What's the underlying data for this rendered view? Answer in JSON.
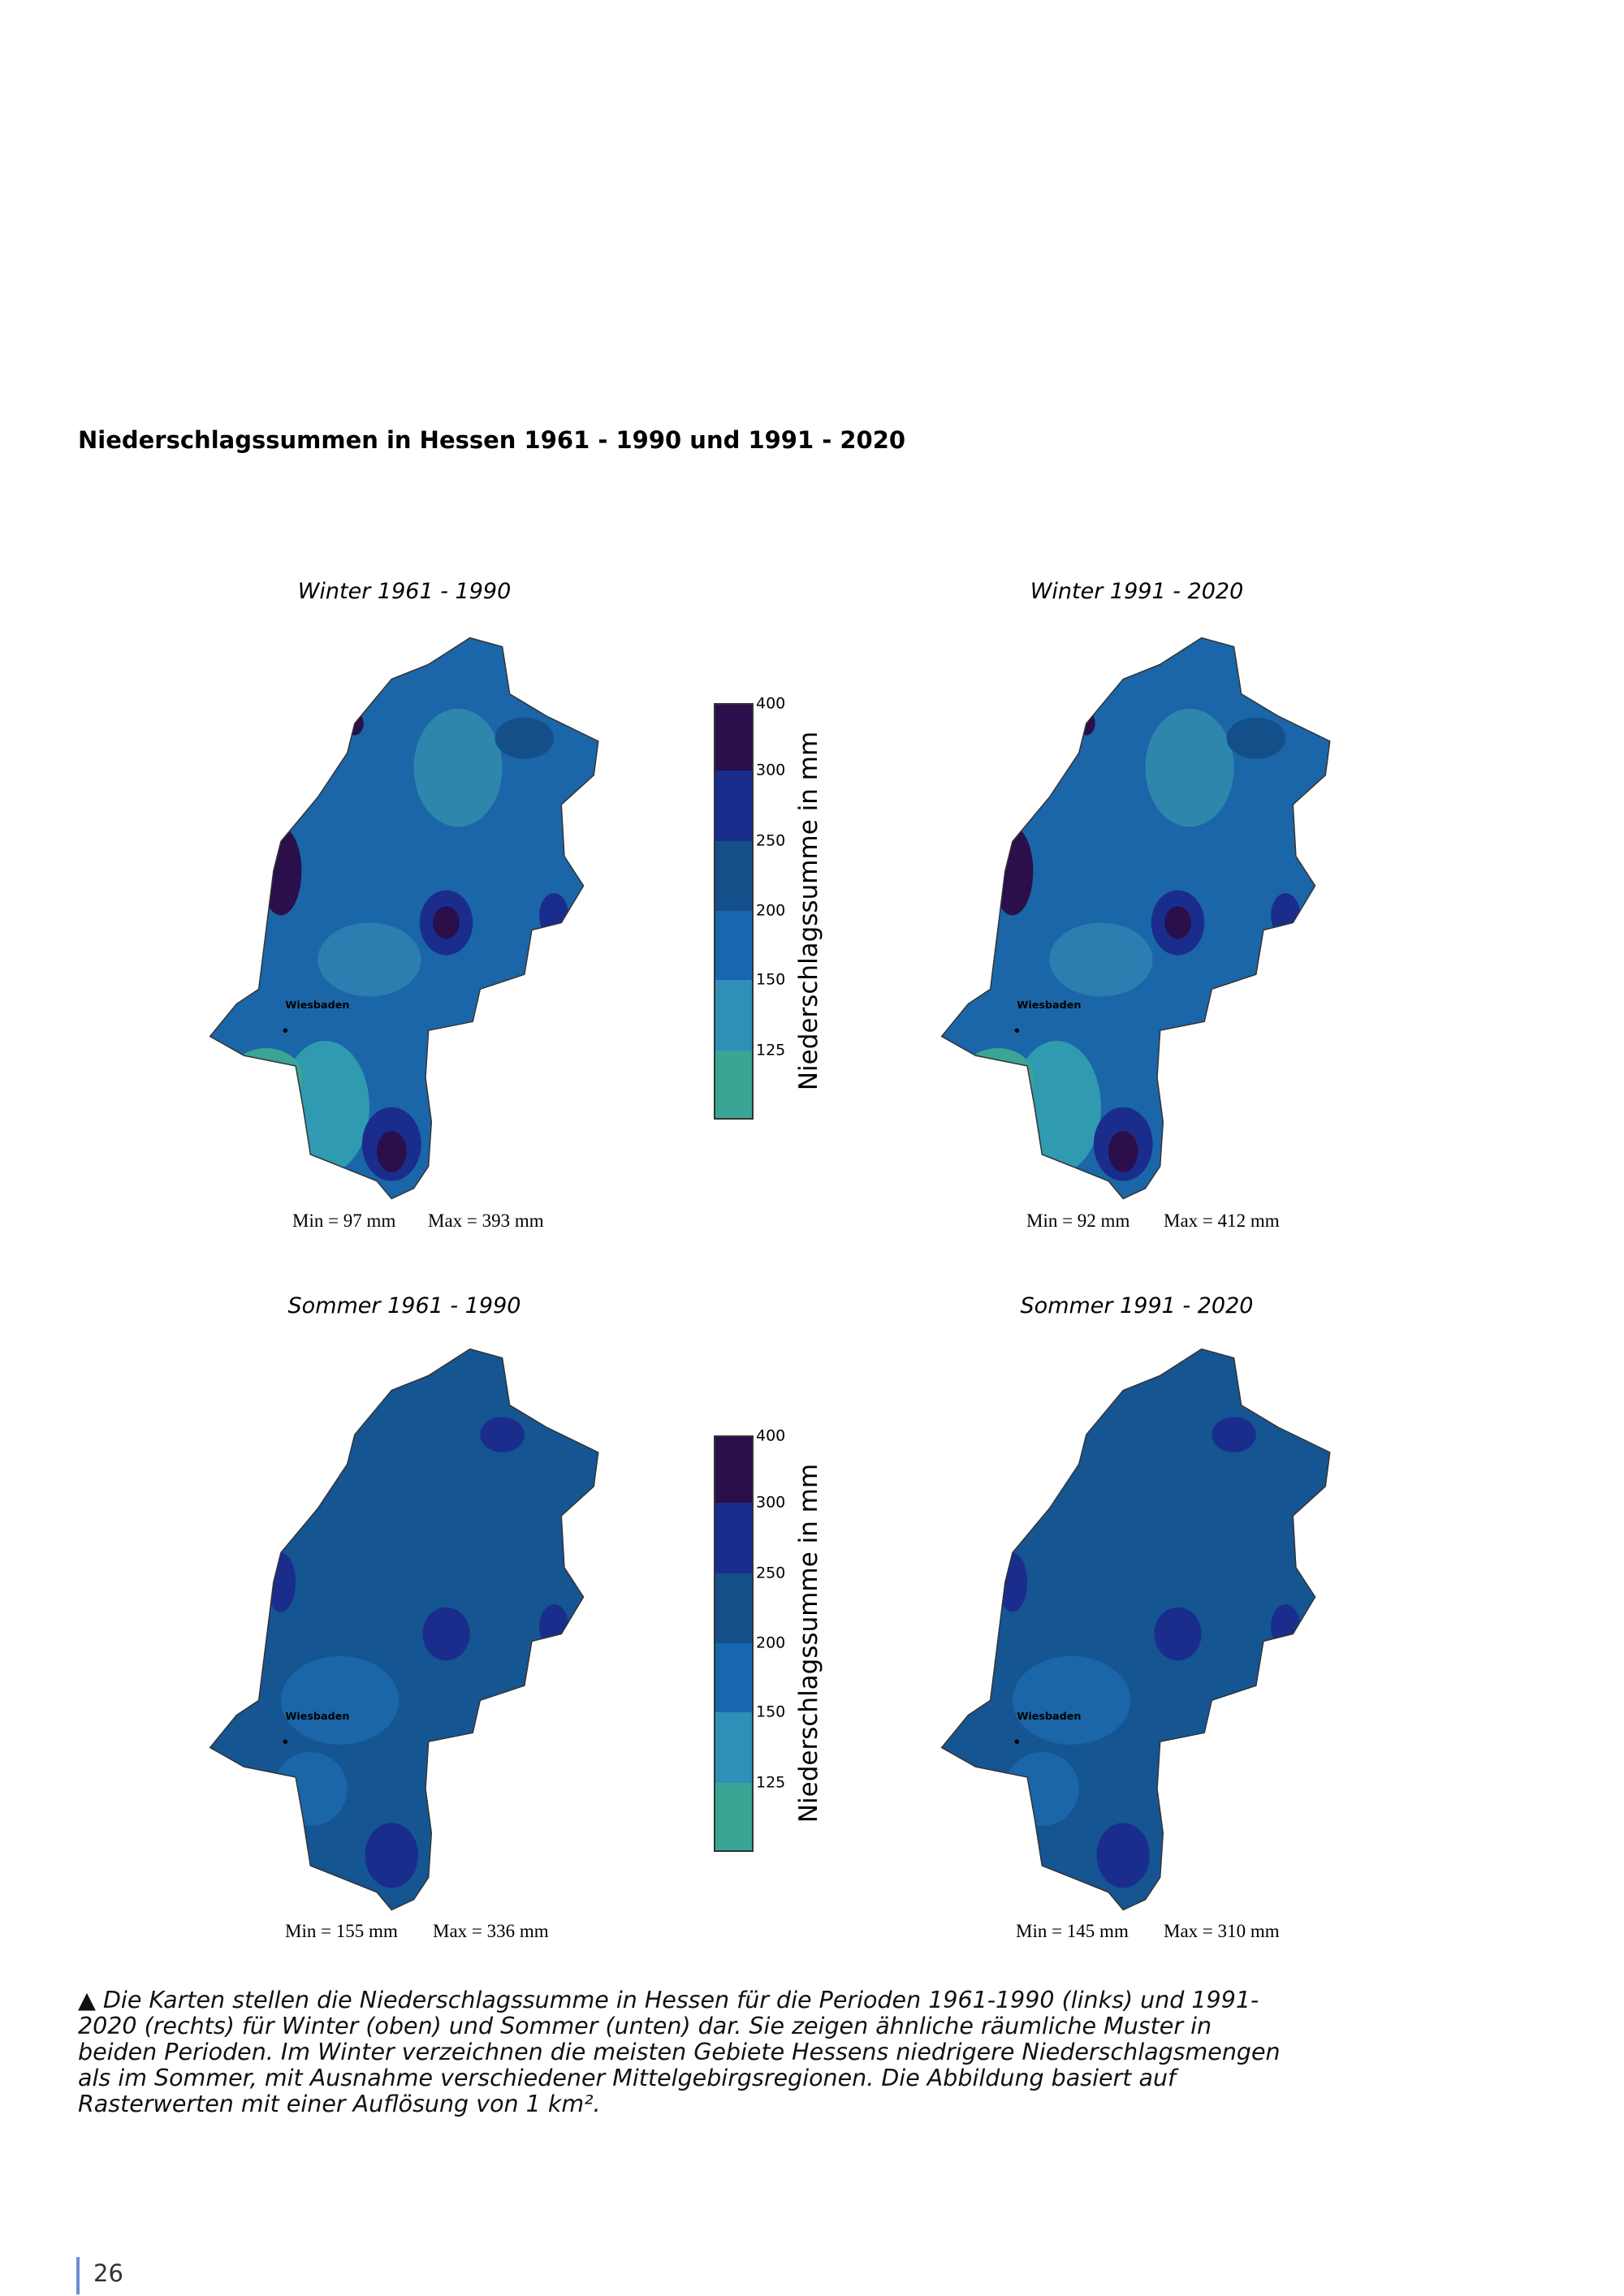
{
  "header": {
    "title": "Niederschlagssummen in Hessen 1961 - 1990 und 1991 - 2020"
  },
  "maps": [
    {
      "title": "Winter 1961 - 1990",
      "city": "Wiesbaden",
      "min": "Min = 97 mm",
      "max": "Max = 393 mm"
    },
    {
      "title": "Winter 1991 - 2020",
      "city": "Wiesbaden",
      "min": "Min = 92 mm",
      "max": "Max = 412 mm"
    },
    {
      "title": "Sommer 1961 - 1990",
      "city": "Wiesbaden",
      "min": "Min = 155 mm",
      "max": "Max = 336 mm"
    },
    {
      "title": "Sommer 1991 - 2020",
      "city": "Wiesbaden",
      "min": "Min = 145 mm",
      "max": "Max = 310 mm"
    }
  ],
  "colorbar": {
    "label": "Niederschlagssumme in mm",
    "ticks": [
      400,
      300,
      250,
      200,
      150,
      125
    ]
  },
  "caption": "▲ Die Karten stellen die Niederschlagssumme in Hessen für die Perioden 1961-1990 (links) und 1991-2020 (rechts) für Winter (oben) und Sommer (unten) dar. Sie zeigen ähnliche räumliche Muster in beiden Perioden. Im Winter verzeichnen die meisten Gebiete Hessens niedrigere Niederschlagsmengen als im Sommer, mit Ausnahme verschiedener Mittelgebirgsregionen. Die Abbildung basiert auf Rasterwerten mit einer Auflösung von 1 km².",
  "footer": {
    "page": "26"
  }
}
